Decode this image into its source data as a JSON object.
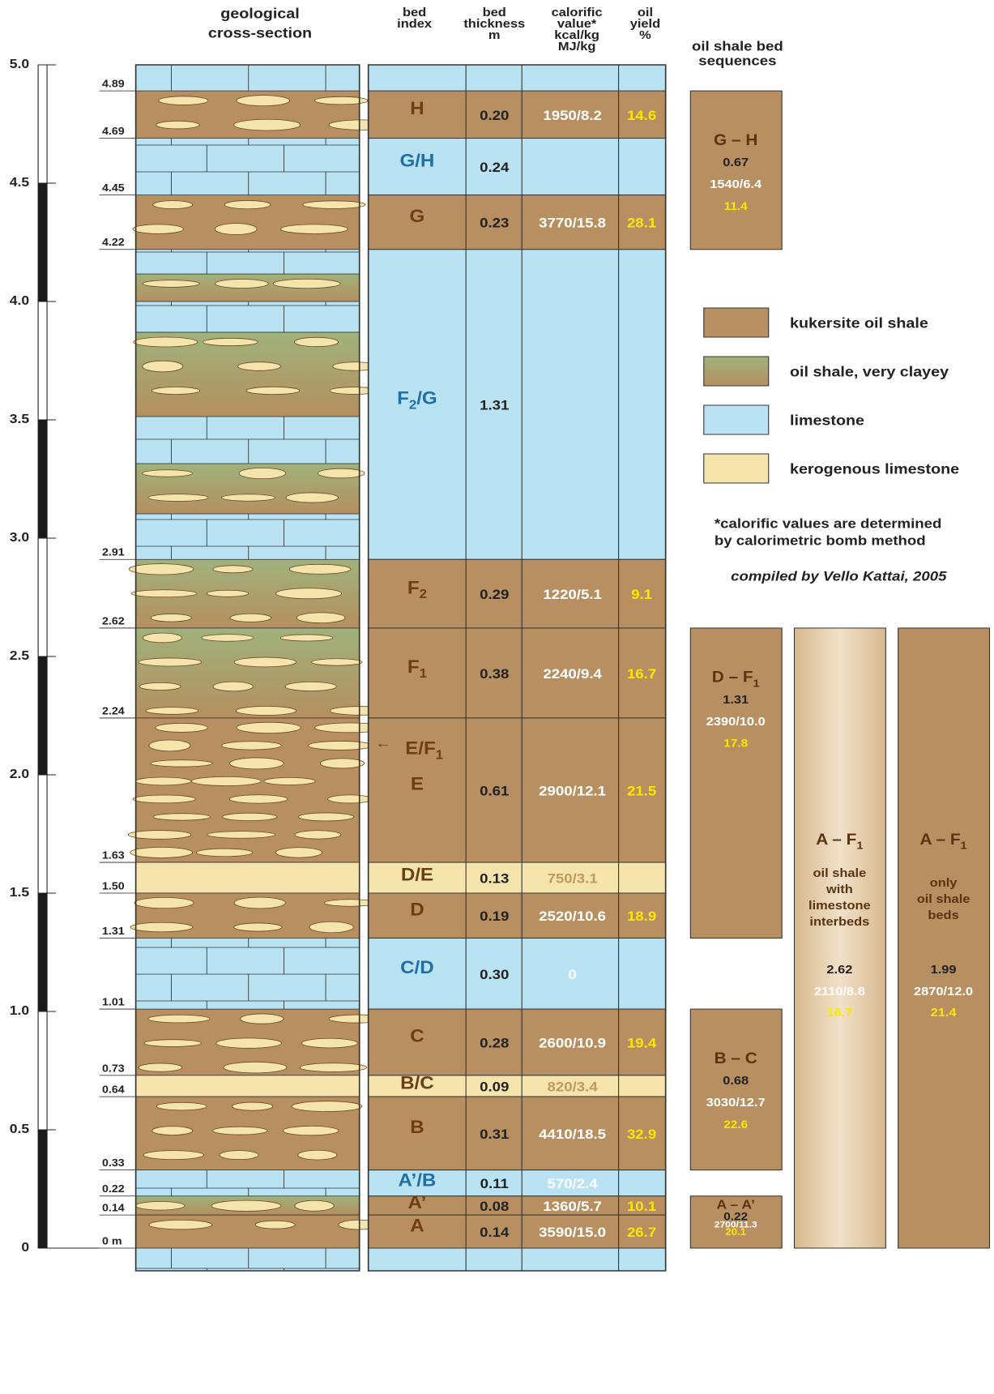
{
  "header": {
    "cross_section": [
      "geological",
      "cross-section"
    ],
    "columns": [
      [
        "bed",
        "index"
      ],
      [
        "bed",
        "thickness",
        "m"
      ],
      [
        "calorific",
        "value*",
        "kcal/kg",
        "MJ/kg"
      ],
      [
        "oil",
        "yield",
        "%"
      ]
    ],
    "sequences_title": [
      "oil shale bed",
      "sequences"
    ]
  },
  "depth_axis": [
    "5.0",
    "4.5",
    "4.0",
    "3.5",
    "3.0",
    "2.5",
    "2.0",
    "1.5",
    "1.0",
    "0.5",
    "0"
  ],
  "boundaries": [
    "4.89",
    "4.69",
    "4.45",
    "4.22",
    "2.91",
    "2.62",
    "2.24",
    "1.63",
    "1.50",
    "1.31",
    "1.01",
    "0.73",
    "0.64",
    "0.33",
    "0.22",
    "0.14",
    "0 m"
  ],
  "beds": [
    {
      "index": "H",
      "type": "oil-shale",
      "thickness": "0.20",
      "calorific": "1950/8.2",
      "yield": "14.6"
    },
    {
      "index": "G/H",
      "type": "limestone",
      "thickness": "0.24"
    },
    {
      "index": "G",
      "type": "oil-shale",
      "thickness": "0.23",
      "calorific": "3770/15.8",
      "yield": "28.1"
    },
    {
      "index": "F",
      "sub": "2",
      "after": "/G",
      "type": "limestone",
      "thickness": "1.31"
    },
    {
      "index": "F",
      "sub": "2",
      "type": "oil-shale",
      "thickness": "0.29",
      "calorific": "1220/5.1",
      "yield": "9.1"
    },
    {
      "index": "F",
      "sub": "1",
      "type": "oil-shale",
      "thickness": "0.38",
      "calorific": "2240/9.4",
      "yield": "16.7"
    },
    {
      "index": "E",
      "type": "oil-shale",
      "thickness": "0.61",
      "calorific": "2900/12.1",
      "yield": "21.5",
      "marker": {
        "text": "E/F",
        "sub": "1"
      }
    },
    {
      "index": "D/E",
      "type": "kerogenous",
      "thickness": "0.13",
      "calorific": "750/3.1"
    },
    {
      "index": "D",
      "type": "oil-shale",
      "thickness": "0.19",
      "calorific": "2520/10.6",
      "yield": "18.9"
    },
    {
      "index": "C/D",
      "type": "limestone",
      "thickness": "0.30",
      "calorific": "0"
    },
    {
      "index": "C",
      "type": "oil-shale",
      "thickness": "0.28",
      "calorific": "2600/10.9",
      "yield": "19.4"
    },
    {
      "index": "B/C",
      "type": "kerogenous",
      "thickness": "0.09",
      "calorific": "820/3.4"
    },
    {
      "index": "B",
      "type": "oil-shale",
      "thickness": "0.31",
      "calorific": "4410/18.5",
      "yield": "32.9"
    },
    {
      "index": "A’/B",
      "type": "limestone",
      "thickness": "0.11",
      "calorific": "570/2.4"
    },
    {
      "index": "A’",
      "type": "oil-shale",
      "thickness": "0.08",
      "calorific": "1360/5.7",
      "yield": "10.1"
    },
    {
      "index": "A",
      "type": "oil-shale",
      "thickness": "0.14",
      "calorific": "3590/15.0",
      "yield": "26.7"
    }
  ],
  "sequences": [
    {
      "name": "G – H",
      "thickness": "0.67",
      "calorific": "1540/6.4",
      "yield": "11.4"
    },
    {
      "name": "D – F",
      "sub": "1",
      "thickness": "1.31",
      "calorific": "2390/10.0",
      "yield": "17.8"
    },
    {
      "name": "B – C",
      "thickness": "0.68",
      "calorific": "3030/12.7",
      "yield": "22.6"
    },
    {
      "name": "A – A’",
      "thickness": "0.22",
      "calorific": "2700/11.3",
      "yield": "20.1"
    }
  ],
  "totals": [
    {
      "name": "A – F",
      "sub": "1",
      "description": [
        "oil shale",
        "with",
        "limestone",
        "interbeds"
      ],
      "thickness": "2.62",
      "calorific": "2110/8.8",
      "yield": "16.7"
    },
    {
      "name": "A – F",
      "sub": "1",
      "description": [
        "only",
        "oil shale",
        "beds"
      ],
      "thickness": "1.99",
      "calorific": "2870/12.0",
      "yield": "21.4"
    }
  ],
  "legend": [
    {
      "label": "kukersite oil shale",
      "type": "oil-shale"
    },
    {
      "label": "oil shale, very clayey",
      "type": "clayey"
    },
    {
      "label": "limestone",
      "type": "limestone"
    },
    {
      "label": "kerogenous limestone",
      "type": "kerogenous"
    }
  ],
  "notes": [
    "*calorific values are determined",
    " by calorimetric bomb method"
  ],
  "credit": "compiled by Vello Kattai, 2005"
}
